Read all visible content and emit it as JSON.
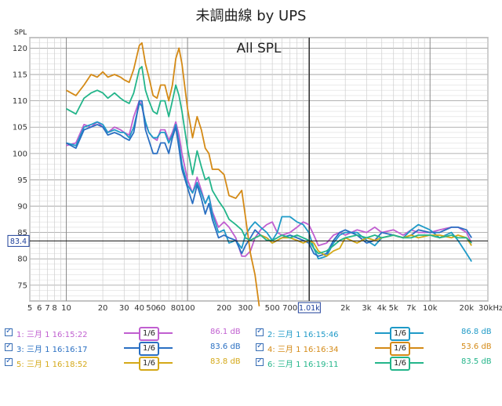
{
  "title": "未調曲線 by UPS",
  "chart_data": {
    "type": "line",
    "title": "未調曲線 by UPS",
    "annotation": "All SPL",
    "ylabel": "SPL",
    "xlabel": "",
    "x_scale": "log",
    "xlim": [
      5,
      30000
    ],
    "ylim": [
      72,
      122
    ],
    "x_tick_labels": [
      {
        "v": 5,
        "t": "5"
      },
      {
        "v": 6,
        "t": "6"
      },
      {
        "v": 7,
        "t": "7"
      },
      {
        "v": 8,
        "t": "8"
      },
      {
        "v": 10,
        "t": "10"
      },
      {
        "v": 20,
        "t": "20"
      },
      {
        "v": 30,
        "t": "30"
      },
      {
        "v": 40,
        "t": "40"
      },
      {
        "v": 50,
        "t": "50"
      },
      {
        "v": 60,
        "t": "60"
      },
      {
        "v": 80,
        "t": "80"
      },
      {
        "v": 100,
        "t": "100"
      },
      {
        "v": 200,
        "t": "200"
      },
      {
        "v": 300,
        "t": "300"
      },
      {
        "v": 500,
        "t": "500"
      },
      {
        "v": 700,
        "t": "700"
      },
      {
        "v": 2000,
        "t": "2k"
      },
      {
        "v": 3000,
        "t": "3k"
      },
      {
        "v": 4000,
        "t": "4k"
      },
      {
        "v": 5000,
        "t": "5k"
      },
      {
        "v": 7000,
        "t": "7k"
      },
      {
        "v": 10000,
        "t": "10k"
      },
      {
        "v": 20000,
        "t": "20k"
      },
      {
        "v": 30000,
        "t": "30kHz"
      }
    ],
    "y_ticks": [
      75,
      80,
      85,
      90,
      95,
      100,
      105,
      110,
      115,
      120
    ],
    "cursor": {
      "x": 1010,
      "x_label": "1.01k",
      "y": 83.4,
      "y_label": "83.4"
    },
    "grid": true,
    "legend_position": "bottom",
    "series": [
      {
        "name": "1: 三月 1 16:15:22",
        "smoothing": "1/6",
        "level": "86.1 dB",
        "color": "#c05fd0",
        "x": [
          10,
          12,
          14,
          16,
          18,
          20,
          22,
          25,
          28,
          30,
          33,
          36,
          40,
          42,
          45,
          48,
          52,
          56,
          60,
          65,
          70,
          75,
          80,
          85,
          90,
          100,
          110,
          120,
          130,
          140,
          150,
          160,
          180,
          200,
          220,
          250,
          280,
          300,
          330,
          360,
          400,
          450,
          500,
          550,
          600,
          700,
          800,
          900,
          1000,
          1100,
          1200,
          1400,
          1600,
          1800,
          2000,
          2500,
          3000,
          3500,
          4000,
          5000,
          6000,
          7000,
          8000,
          10000,
          12000,
          15000,
          17000,
          20000,
          22000
        ],
        "y": [
          101.5,
          102,
          105.5,
          105,
          106,
          105,
          104,
          105,
          104.5,
          104,
          103.5,
          107,
          110,
          109,
          105.5,
          104,
          103,
          102.5,
          104.5,
          104.5,
          102.5,
          104,
          106,
          103.5,
          100,
          95,
          92.5,
          95.5,
          93,
          90.5,
          92,
          89,
          86,
          87,
          86,
          84,
          80.5,
          80.5,
          81.5,
          84,
          85.5,
          86.5,
          87,
          85,
          84.5,
          85,
          86,
          87,
          86.5,
          84.5,
          82.5,
          83,
          84.5,
          85,
          84.5,
          85.5,
          85,
          86,
          85,
          85.5,
          84.5,
          85.5,
          85,
          85,
          85.5,
          86,
          86,
          85,
          83
        ]
      },
      {
        "name": "2: 三月 1 16:15:46",
        "smoothing": "1/6",
        "level": "86.8 dB",
        "color": "#1f9ac7",
        "x": [
          10,
          12,
          14,
          16,
          18,
          20,
          22,
          25,
          28,
          30,
          33,
          36,
          40,
          42,
          45,
          48,
          52,
          56,
          60,
          65,
          70,
          75,
          80,
          85,
          90,
          100,
          110,
          120,
          130,
          140,
          150,
          160,
          180,
          200,
          220,
          250,
          280,
          300,
          330,
          360,
          400,
          450,
          500,
          550,
          600,
          700,
          800,
          900,
          1000,
          1100,
          1200,
          1400,
          1600,
          1800,
          2000,
          2500,
          3000,
          3500,
          4000,
          5000,
          6000,
          7000,
          8000,
          10000,
          12000,
          15000,
          17000,
          20000,
          22000
        ],
        "y": [
          102,
          101.5,
          105,
          105.5,
          106,
          105.5,
          104,
          104.5,
          104,
          104,
          103,
          105,
          109.5,
          109,
          106,
          104,
          103,
          103,
          104,
          104,
          102,
          103.5,
          105.5,
          102,
          98,
          94,
          92.5,
          94.5,
          92.5,
          90.5,
          92,
          88.5,
          85,
          85.5,
          83,
          83.5,
          82,
          84.5,
          86,
          87,
          86,
          85,
          83.5,
          85,
          88,
          88,
          87,
          86.5,
          85,
          82,
          80,
          80.5,
          83,
          84.5,
          85,
          85,
          83.5,
          82.5,
          84,
          84.5,
          84,
          85.5,
          86.5,
          85.5,
          84,
          85,
          83.5,
          81,
          79.5
        ]
      },
      {
        "name": "3: 三月 1 16:16:17",
        "smoothing": "1/6",
        "level": "83.6 dB",
        "color": "#2a6fc2",
        "x": [
          10,
          12,
          14,
          16,
          18,
          20,
          22,
          25,
          28,
          30,
          33,
          36,
          40,
          42,
          45,
          48,
          52,
          56,
          60,
          65,
          70,
          75,
          80,
          85,
          90,
          100,
          110,
          120,
          130,
          140,
          150,
          160,
          180,
          200,
          220,
          250,
          280,
          300,
          330,
          360,
          400,
          450,
          500,
          550,
          600,
          700,
          800,
          900,
          1000,
          1100,
          1200,
          1400,
          1600,
          1800,
          2000,
          2500,
          3000,
          3500,
          4000,
          5000,
          6000,
          7000,
          8000,
          10000,
          12000,
          15000,
          17000,
          20000,
          22000
        ],
        "y": [
          102,
          101,
          104.5,
          105,
          105.5,
          105,
          103.5,
          104,
          103.5,
          103,
          102.5,
          104,
          110,
          110,
          104.5,
          102.5,
          100,
          100,
          102,
          102,
          100,
          103,
          105,
          101,
          97,
          93.5,
          90.5,
          94,
          91.5,
          88.5,
          90.5,
          87.5,
          84,
          84.5,
          84,
          83.5,
          81,
          82.5,
          84,
          85.5,
          84.5,
          84,
          83,
          83.5,
          84,
          84.5,
          84,
          83.5,
          83,
          81,
          80.5,
          81,
          83.5,
          85,
          85.5,
          84.5,
          83,
          83.5,
          85,
          84.5,
          84,
          84.5,
          85.5,
          85,
          85,
          86,
          86,
          85.5,
          84
        ]
      },
      {
        "name": "4: 三月 1 16:16:34",
        "smoothing": "1/6",
        "level": "53.6 dB",
        "color": "#d48a16",
        "x": [
          10,
          12,
          14,
          16,
          18,
          20,
          22,
          25,
          28,
          30,
          33,
          36,
          40,
          42,
          45,
          48,
          52,
          56,
          60,
          65,
          70,
          75,
          80,
          85,
          90,
          100,
          110,
          120,
          130,
          140,
          150,
          160,
          180,
          200,
          220,
          250,
          280,
          300,
          330,
          360,
          390
        ],
        "y": [
          112,
          111,
          113,
          115,
          114.5,
          115.5,
          114.5,
          115,
          114.5,
          114,
          113.5,
          116,
          120.5,
          121,
          117,
          114.5,
          111,
          110.5,
          113,
          113,
          110,
          113,
          118,
          120,
          117,
          108.5,
          103,
          107,
          104.5,
          101,
          100,
          97,
          97,
          96,
          92,
          91.5,
          93,
          88,
          81,
          77,
          71
        ]
      },
      {
        "name": "5: 三月 1 16:18:52",
        "smoothing": "1/6",
        "level": "83.8 dB",
        "color": "#d4a817",
        "x": [
          300,
          330,
          360,
          400,
          450,
          500,
          550,
          600,
          700,
          800,
          900,
          1000,
          1100,
          1200,
          1400,
          1600,
          1800,
          2000,
          2500,
          3000,
          3500,
          4000,
          5000,
          6000,
          7000,
          8000,
          10000,
          12000,
          15000,
          17000,
          20000,
          22000
        ],
        "y": [
          84,
          83.5,
          84,
          84.5,
          84,
          83,
          83.5,
          84,
          84,
          83.5,
          83,
          83.5,
          83,
          81.5,
          80.5,
          81.5,
          82,
          84,
          83,
          84,
          83.5,
          84,
          84.5,
          84,
          84.5,
          84,
          84.5,
          84.5,
          84,
          84.5,
          84,
          82.5
        ]
      },
      {
        "name": "6: 三月 1 16:19:11",
        "smoothing": "1/6",
        "level": "83.5 dB",
        "color": "#23b58a",
        "x": [
          10,
          12,
          14,
          16,
          18,
          20,
          22,
          25,
          28,
          30,
          33,
          36,
          40,
          42,
          45,
          48,
          52,
          56,
          60,
          65,
          70,
          75,
          80,
          85,
          90,
          100,
          110,
          120,
          130,
          140,
          150,
          160,
          180,
          200,
          220,
          250,
          280,
          300,
          330,
          360,
          400,
          450,
          500,
          550,
          600,
          700,
          800,
          900,
          1000,
          1100,
          1200,
          1400,
          1600,
          1800,
          2000,
          2500,
          3000,
          3500,
          4000,
          5000,
          6000,
          7000,
          8000,
          10000,
          12000,
          15000,
          17000,
          20000,
          22000
        ],
        "y": [
          108.5,
          107.5,
          110.5,
          111.5,
          112,
          111.5,
          110.5,
          111.5,
          110.5,
          110,
          109.5,
          111.5,
          116,
          116.5,
          112,
          110,
          108,
          107.5,
          110,
          110,
          107,
          110,
          113,
          111,
          108,
          101,
          96,
          100.5,
          97.5,
          95,
          95.5,
          93,
          91,
          89.5,
          87.5,
          86.5,
          85.5,
          84,
          83.5,
          84,
          84.5,
          83.5,
          83.5,
          84,
          84.5,
          84,
          84.5,
          84,
          83.5,
          82,
          81,
          81.5,
          82.5,
          83.5,
          84,
          84.5,
          84,
          84.5,
          84,
          84.5,
          84,
          84,
          84.5,
          84.5,
          84,
          84.5,
          84,
          84,
          83
        ]
      }
    ]
  }
}
